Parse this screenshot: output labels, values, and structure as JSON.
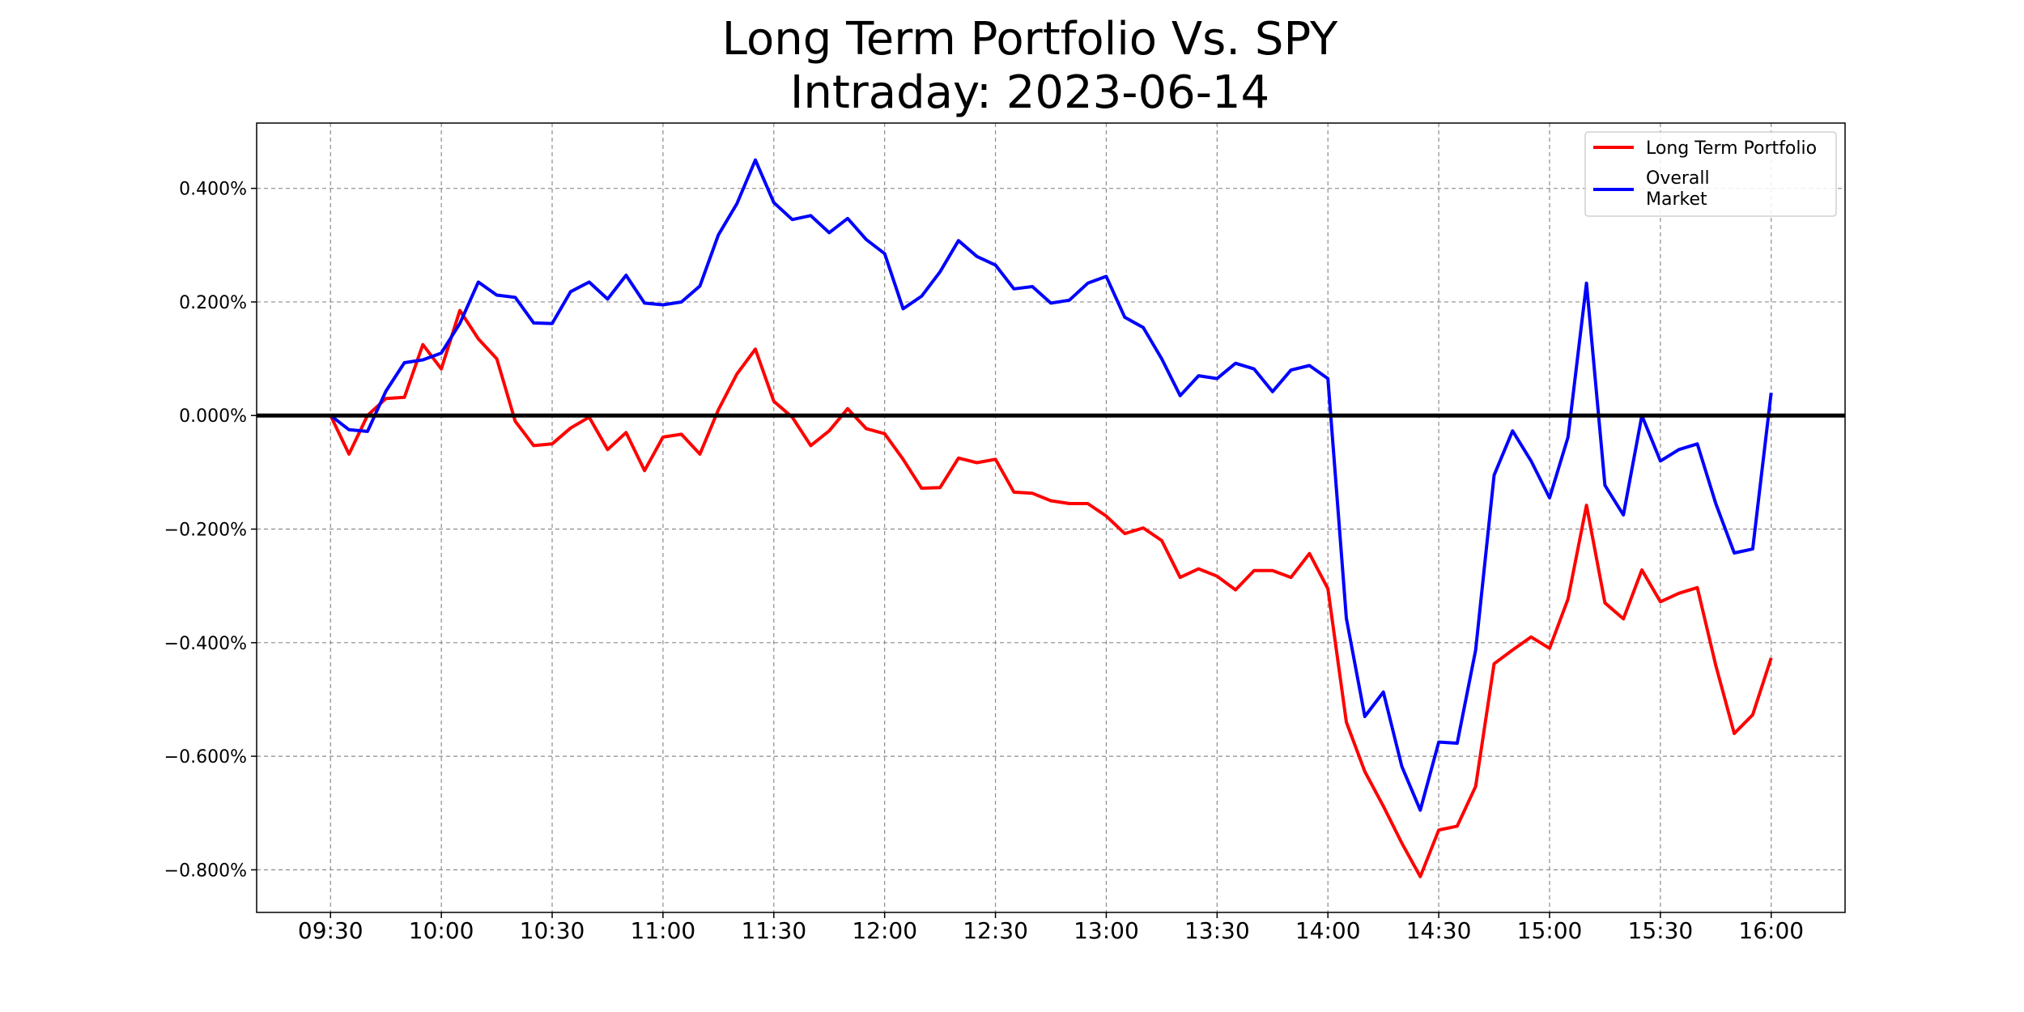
{
  "chart_data": {
    "type": "line",
    "title_line1": "Long Term Portfolio Vs. SPY",
    "title_line2": "Intraday: 2023-06-14",
    "xlabel": "",
    "ylabel": "",
    "xlim": [
      -20,
      410
    ],
    "ylim": [
      -0.875,
      0.515
    ],
    "x_ticks": [
      {
        "x": 0,
        "label": "09:30"
      },
      {
        "x": 30,
        "label": "10:00"
      },
      {
        "x": 60,
        "label": "10:30"
      },
      {
        "x": 90,
        "label": "11:00"
      },
      {
        "x": 120,
        "label": "11:30"
      },
      {
        "x": 150,
        "label": "12:00"
      },
      {
        "x": 180,
        "label": "12:30"
      },
      {
        "x": 210,
        "label": "13:00"
      },
      {
        "x": 240,
        "label": "13:30"
      },
      {
        "x": 270,
        "label": "14:00"
      },
      {
        "x": 300,
        "label": "14:30"
      },
      {
        "x": 330,
        "label": "15:00"
      },
      {
        "x": 360,
        "label": "15:30"
      },
      {
        "x": 390,
        "label": "16:00"
      }
    ],
    "y_ticks": [
      {
        "y": 0.4,
        "label": "0.400%"
      },
      {
        "y": 0.2,
        "label": "0.200%"
      },
      {
        "y": 0.0,
        "label": "0.000%"
      },
      {
        "y": -0.2,
        "label": "−0.200%"
      },
      {
        "y": -0.4,
        "label": "−0.400%"
      },
      {
        "y": -0.6,
        "label": "−0.600%"
      },
      {
        "y": -0.8,
        "label": "−0.800%"
      }
    ],
    "grid": true,
    "baseline": 0.0,
    "legend_position": "top-right",
    "x_step_minutes": 5,
    "series": [
      {
        "name": "Long Term Portfolio",
        "legend_label": "Long Term Portfolio",
        "color": "#ff0000",
        "values": [
          0.0,
          -0.068,
          0.0,
          0.03,
          0.032,
          0.125,
          0.082,
          0.185,
          0.135,
          0.1,
          -0.01,
          -0.053,
          -0.05,
          -0.022,
          -0.003,
          -0.06,
          -0.03,
          -0.097,
          -0.038,
          -0.033,
          -0.068,
          0.01,
          0.073,
          0.117,
          0.025,
          -0.003,
          -0.053,
          -0.027,
          0.012,
          -0.023,
          -0.032,
          -0.077,
          -0.128,
          -0.127,
          -0.075,
          -0.083,
          -0.077,
          -0.135,
          -0.137,
          -0.15,
          -0.155,
          -0.155,
          -0.177,
          -0.208,
          -0.198,
          -0.22,
          -0.285,
          -0.27,
          -0.283,
          -0.307,
          -0.273,
          -0.273,
          -0.285,
          -0.243,
          -0.305,
          -0.54,
          -0.627,
          -0.688,
          -0.753,
          -0.812,
          -0.73,
          -0.723,
          -0.653,
          -0.437,
          -0.413,
          -0.39,
          -0.41,
          -0.323,
          -0.158,
          -0.33,
          -0.358,
          -0.272,
          -0.328,
          -0.313,
          -0.303,
          -0.44,
          -0.56,
          -0.527,
          -0.427
        ]
      },
      {
        "name": "Overall Market",
        "legend_label_line1": "Overall",
        "legend_label_line2": "Market",
        "color": "#0000ff",
        "values": [
          0.0,
          -0.025,
          -0.028,
          0.043,
          0.093,
          0.098,
          0.11,
          0.162,
          0.235,
          0.212,
          0.208,
          0.163,
          0.162,
          0.218,
          0.235,
          0.205,
          0.247,
          0.198,
          0.195,
          0.2,
          0.228,
          0.318,
          0.373,
          0.45,
          0.375,
          0.345,
          0.352,
          0.322,
          0.347,
          0.31,
          0.285,
          0.188,
          0.21,
          0.253,
          0.308,
          0.28,
          0.265,
          0.223,
          0.227,
          0.198,
          0.203,
          0.233,
          0.245,
          0.173,
          0.155,
          0.1,
          0.035,
          0.07,
          0.065,
          0.092,
          0.082,
          0.042,
          0.08,
          0.088,
          0.065,
          -0.357,
          -0.53,
          -0.487,
          -0.618,
          -0.695,
          -0.575,
          -0.577,
          -0.413,
          -0.105,
          -0.027,
          -0.08,
          -0.145,
          -0.038,
          0.233,
          -0.123,
          -0.175,
          0.0,
          -0.08,
          -0.06,
          -0.05,
          -0.155,
          -0.242,
          -0.235,
          0.04
        ]
      }
    ]
  }
}
